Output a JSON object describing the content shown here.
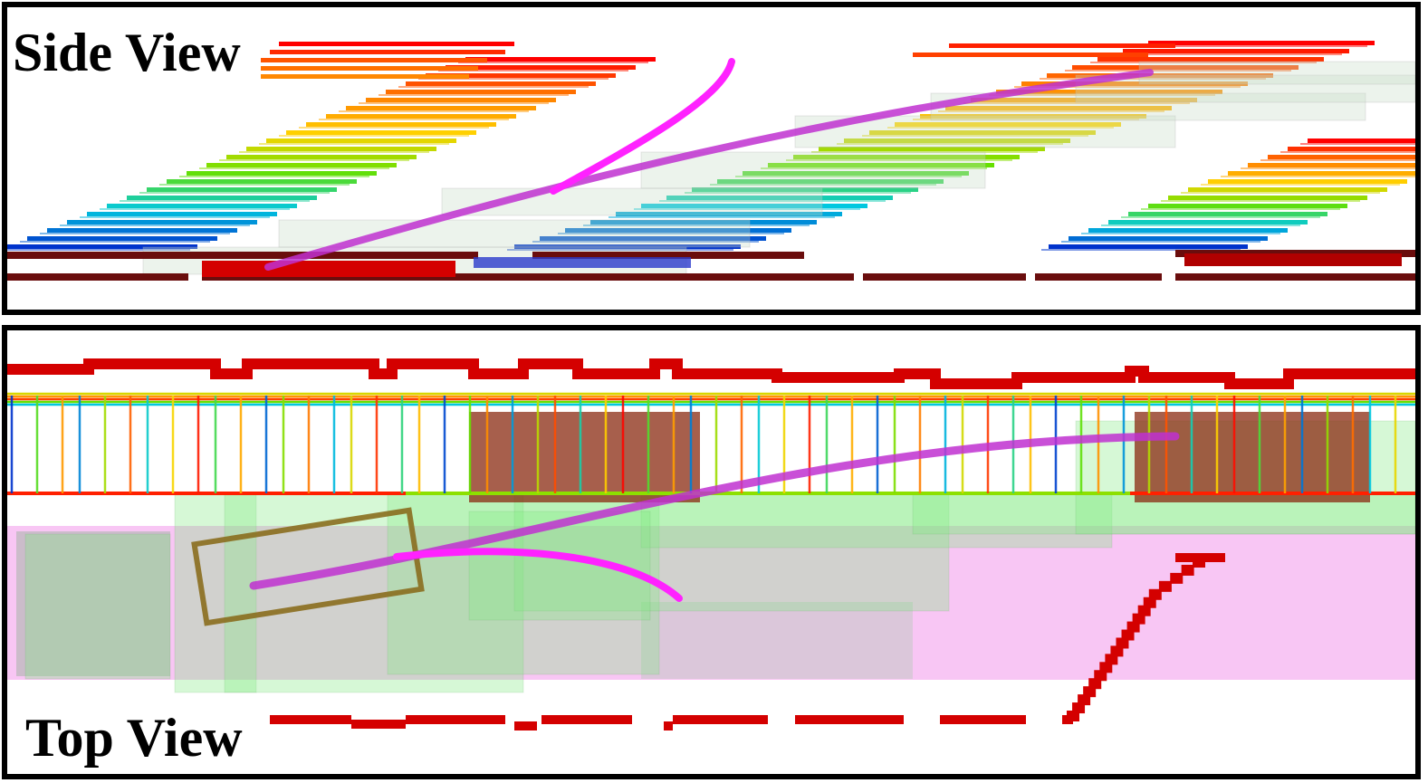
{
  "panels": {
    "side": {
      "label": "Side View"
    },
    "top": {
      "label": "Top View"
    }
  },
  "colors": {
    "trajectory": "#e040e8",
    "obstacle_cells": "#d40000",
    "obstacle_dark": "#6a0d0d",
    "safe_corridor": "#7ee87e",
    "reference_region": "#f5b3f0",
    "vehicle_box": "#8a6d1e",
    "gradient": [
      "#0033cc",
      "#00c8e0",
      "#66e000",
      "#ffd400",
      "#ff8000",
      "#ff0000"
    ]
  }
}
